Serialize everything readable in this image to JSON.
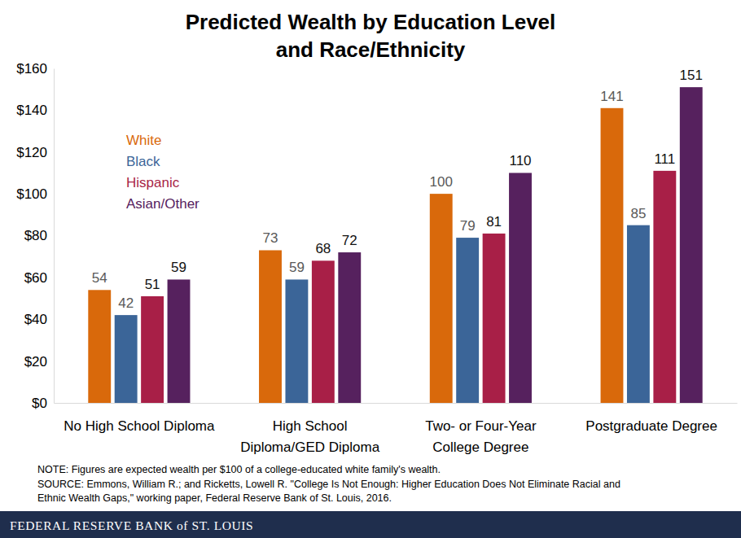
{
  "chart_data": {
    "type": "bar",
    "title": "Predicted Wealth by Education Level\nand Race/Ethnicity",
    "categories": [
      "No High School Diploma",
      "High School\nDiploma/GED Diploma",
      "Two- or Four-Year\nCollege Degree",
      "Postgraduate Degree"
    ],
    "series": [
      {
        "name": "White",
        "color": "#d9690b",
        "values": [
          54,
          73,
          100,
          141
        ]
      },
      {
        "name": "Black",
        "color": "#3b6598",
        "values": [
          42,
          59,
          79,
          85
        ]
      },
      {
        "name": "Hispanic",
        "color": "#a81f47",
        "values": [
          51,
          68,
          81,
          111
        ]
      },
      {
        "name": "Asian/Other",
        "color": "#56215e",
        "values": [
          59,
          72,
          110,
          151
        ]
      }
    ],
    "ylim": [
      0,
      160
    ],
    "yticks": [
      {
        "value": 0,
        "label": "$0"
      },
      {
        "value": 20,
        "label": "$20"
      },
      {
        "value": 40,
        "label": "$40"
      },
      {
        "value": 60,
        "label": "$60"
      },
      {
        "value": 80,
        "label": "$80"
      },
      {
        "value": 100,
        "label": "$100"
      },
      {
        "value": 120,
        "label": "$120"
      },
      {
        "value": 140,
        "label": "$140"
      },
      {
        "value": 160,
        "label": "$160"
      }
    ],
    "grid": false,
    "legend": "upper left",
    "data_labels": true,
    "note": "NOTE: Figures are expected wealth per $100 of a college-educated white family's wealth.",
    "source": "SOURCE: Emmons, William R.; and Ricketts, Lowell R. \"College Is Not Enough: Higher Education Does Not Eliminate Racial and\nEthnic Wealth Gaps,\" working paper, Federal Reserve Bank of St. Louis, 2016.",
    "footer": "FEDERAL RESERVE BANK of ST. LOUIS"
  }
}
